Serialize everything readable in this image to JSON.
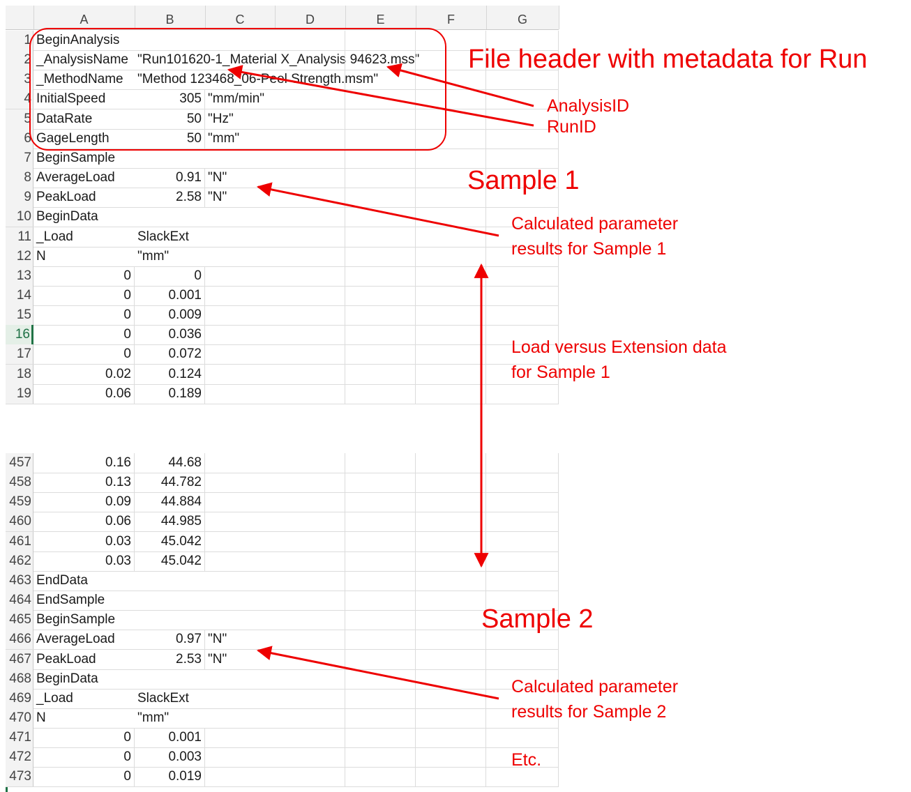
{
  "columns": [
    "A",
    "B",
    "C",
    "D",
    "E",
    "F",
    "G"
  ],
  "top_rows": [
    {
      "n": "1",
      "a": "BeginAnalysis",
      "b": "",
      "c": ""
    },
    {
      "n": "2",
      "a": "_AnalysisName",
      "b": "\"Run101620-1_Material X_Analysis 94623.mss\"",
      "c": ""
    },
    {
      "n": "3",
      "a": "_MethodName",
      "b": "\"Method 123468_06-Peel Strength.msm\"",
      "c": ""
    },
    {
      "n": "4",
      "a": "InitialSpeed",
      "b": "305",
      "c": "\"mm/min\""
    },
    {
      "n": "5",
      "a": "DataRate",
      "b": "50",
      "c": "\"Hz\""
    },
    {
      "n": "6",
      "a": "GageLength",
      "b": "50",
      "c": "\"mm\""
    },
    {
      "n": "7",
      "a": "BeginSample",
      "b": "",
      "c": ""
    },
    {
      "n": "8",
      "a": "AverageLoad",
      "b": "0.91",
      "c": "\"N\""
    },
    {
      "n": "9",
      "a": "PeakLoad",
      "b": "2.58",
      "c": "\"N\""
    },
    {
      "n": "10",
      "a": "BeginData",
      "b": "",
      "c": ""
    },
    {
      "n": "11",
      "a": "_Load",
      "b": "SlackExt",
      "c": ""
    },
    {
      "n": "12",
      "a": "N",
      "b": "\"mm\"",
      "c": ""
    },
    {
      "n": "13",
      "a": "0",
      "b": "0",
      "c": ""
    },
    {
      "n": "14",
      "a": "0",
      "b": "0.001",
      "c": ""
    },
    {
      "n": "15",
      "a": "0",
      "b": "0.009",
      "c": ""
    },
    {
      "n": "16",
      "a": "0",
      "b": "0.036",
      "c": ""
    },
    {
      "n": "17",
      "a": "0",
      "b": "0.072",
      "c": ""
    },
    {
      "n": "18",
      "a": "0.02",
      "b": "0.124",
      "c": ""
    },
    {
      "n": "19",
      "a": "0.06",
      "b": "0.189",
      "c": ""
    }
  ],
  "bottom_rows": [
    {
      "n": "457",
      "a": "0.16",
      "b": "44.68",
      "c": ""
    },
    {
      "n": "458",
      "a": "0.13",
      "b": "44.782",
      "c": ""
    },
    {
      "n": "459",
      "a": "0.09",
      "b": "44.884",
      "c": ""
    },
    {
      "n": "460",
      "a": "0.06",
      "b": "44.985",
      "c": ""
    },
    {
      "n": "461",
      "a": "0.03",
      "b": "45.042",
      "c": ""
    },
    {
      "n": "462",
      "a": "0.03",
      "b": "45.042",
      "c": ""
    },
    {
      "n": "463",
      "a": "EndData",
      "b": "",
      "c": ""
    },
    {
      "n": "464",
      "a": "EndSample",
      "b": "",
      "c": ""
    },
    {
      "n": "465",
      "a": "BeginSample",
      "b": "",
      "c": ""
    },
    {
      "n": "466",
      "a": "AverageLoad",
      "b": "0.97",
      "c": "\"N\""
    },
    {
      "n": "467",
      "a": "PeakLoad",
      "b": "2.53",
      "c": "\"N\""
    },
    {
      "n": "468",
      "a": "BeginData",
      "b": "",
      "c": ""
    },
    {
      "n": "469",
      "a": "_Load",
      "b": "SlackExt",
      "c": ""
    },
    {
      "n": "470",
      "a": "N",
      "b": "\"mm\"",
      "c": ""
    },
    {
      "n": "471",
      "a": "0",
      "b": "0.001",
      "c": ""
    },
    {
      "n": "472",
      "a": "0",
      "b": "0.003",
      "c": ""
    },
    {
      "n": "473",
      "a": "0",
      "b": "0.019",
      "c": ""
    }
  ],
  "annotations": {
    "file_header": "File header with metadata for Run",
    "analysis_id": "AnalysisID",
    "run_id": "RunID",
    "sample1": "Sample 1",
    "calc1_line1": "Calculated parameter",
    "calc1_line2": "results for Sample 1",
    "load_line1": "Load versus Extension data",
    "load_line2": "for Sample 1",
    "sample2": "Sample 2",
    "calc2_line1": "Calculated parameter",
    "calc2_line2": "results for Sample 2",
    "etc": "Etc."
  },
  "colors": {
    "annotation": "#ee0000",
    "excel_green": "#217346"
  }
}
